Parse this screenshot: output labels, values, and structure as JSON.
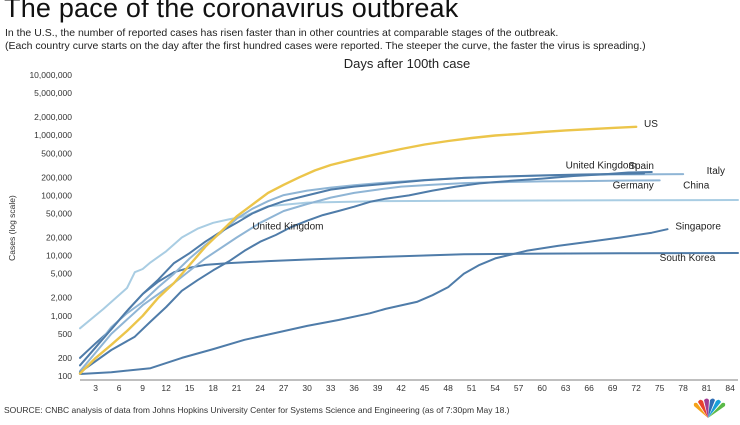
{
  "header": {
    "title": "The pace of the coronavirus outbreak",
    "subtitle_line1": "In the U.S., the number of reported cases has risen faster than in other countries at comparable stages of the outbreak.",
    "subtitle_line2": "(Each country curve starts on the day after the first hundred cases were reported. The steeper the curve, the faster the virus is spreading.)"
  },
  "footer": {
    "source": "SOURCE: CNBC analysis of data from Johns Hopkins University Center for Systems Science and Engineering (as of 7:30pm May 18.)"
  },
  "logo": {
    "icon": "nbc-peacock-icon"
  },
  "chart_data": {
    "type": "line",
    "title": "Days after 100th case",
    "xlabel": "",
    "ylabel": "Cases (log scale)",
    "yscale": "log",
    "ylim": [
      100,
      10000000
    ],
    "xlim": [
      1,
      85
    ],
    "grid": false,
    "x_ticks": [
      3,
      6,
      9,
      12,
      15,
      18,
      21,
      24,
      27,
      30,
      33,
      36,
      39,
      42,
      45,
      48,
      51,
      54,
      57,
      60,
      63,
      66,
      69,
      72,
      75,
      78,
      81,
      84
    ],
    "y_ticks": [
      {
        "value": 100,
        "label": "100"
      },
      {
        "value": 200,
        "label": "200"
      },
      {
        "value": 500,
        "label": "500"
      },
      {
        "value": 1000,
        "label": "1,000"
      },
      {
        "value": 2000,
        "label": "2,000"
      },
      {
        "value": 5000,
        "label": "5,000"
      },
      {
        "value": 10000,
        "label": "10,000"
      },
      {
        "value": 20000,
        "label": "20,000"
      },
      {
        "value": 50000,
        "label": "50,000"
      },
      {
        "value": 100000,
        "label": "100,000"
      },
      {
        "value": 200000,
        "label": "200,000"
      },
      {
        "value": 500000,
        "label": "500,000"
      },
      {
        "value": 1000000,
        "label": "1,000,000"
      },
      {
        "value": 2000000,
        "label": "2,000,000"
      },
      {
        "value": 5000000,
        "label": "5,000,000"
      },
      {
        "value": 10000000,
        "label": "10,000,000"
      }
    ],
    "series": [
      {
        "name": "China",
        "color": "#a9cde3",
        "label_anchor": "end",
        "points": [
          [
            1,
            620
          ],
          [
            4,
            1300
          ],
          [
            7,
            2900
          ],
          [
            8,
            5300
          ],
          [
            9,
            6000
          ],
          [
            10,
            7700
          ],
          [
            12,
            11800
          ],
          [
            14,
            20000
          ],
          [
            16,
            28000
          ],
          [
            18,
            35000
          ],
          [
            20,
            40000
          ],
          [
            22,
            45000
          ],
          [
            25,
            66000
          ],
          [
            30,
            76000
          ],
          [
            40,
            80500
          ],
          [
            50,
            81600
          ],
          [
            60,
            82400
          ],
          [
            70,
            82800
          ],
          [
            80,
            83500
          ],
          [
            85,
            84000
          ]
        ]
      },
      {
        "name": "South Korea",
        "color": "#4f7ca9",
        "label_anchor": "end",
        "points": [
          [
            1,
            200
          ],
          [
            3,
            350
          ],
          [
            5,
            600
          ],
          [
            7,
            1200
          ],
          [
            9,
            2300
          ],
          [
            11,
            3700
          ],
          [
            13,
            5300
          ],
          [
            15,
            6300
          ],
          [
            17,
            7000
          ],
          [
            20,
            7500
          ],
          [
            25,
            8100
          ],
          [
            30,
            8600
          ],
          [
            40,
            9600
          ],
          [
            50,
            10500
          ],
          [
            60,
            10800
          ],
          [
            70,
            10900
          ],
          [
            85,
            11050
          ]
        ]
      },
      {
        "name": "Singapore",
        "color": "#4f7ca9",
        "label_anchor": "end",
        "points": [
          [
            1,
            108
          ],
          [
            5,
            115
          ],
          [
            10,
            135
          ],
          [
            14,
            200
          ],
          [
            18,
            280
          ],
          [
            22,
            400
          ],
          [
            26,
            520
          ],
          [
            30,
            680
          ],
          [
            34,
            850
          ],
          [
            38,
            1100
          ],
          [
            40,
            1300
          ],
          [
            44,
            1700
          ],
          [
            46,
            2200
          ],
          [
            48,
            3000
          ],
          [
            50,
            5000
          ],
          [
            52,
            7000
          ],
          [
            54,
            9000
          ],
          [
            58,
            12000
          ],
          [
            62,
            14500
          ],
          [
            66,
            17000
          ],
          [
            70,
            20000
          ],
          [
            74,
            24000
          ],
          [
            76,
            27500
          ]
        ]
      },
      {
        "name": "Italy",
        "color": "#8fb5d5",
        "label_anchor": "end",
        "points": [
          [
            1,
            150
          ],
          [
            3,
            300
          ],
          [
            5,
            650
          ],
          [
            7,
            1100
          ],
          [
            9,
            1700
          ],
          [
            11,
            3000
          ],
          [
            13,
            5000
          ],
          [
            15,
            9000
          ],
          [
            17,
            15000
          ],
          [
            19,
            24000
          ],
          [
            21,
            41000
          ],
          [
            23,
            60000
          ],
          [
            25,
            80000
          ],
          [
            27,
            101000
          ],
          [
            30,
            120000
          ],
          [
            33,
            135000
          ],
          [
            36,
            148000
          ],
          [
            40,
            163000
          ],
          [
            45,
            180000
          ],
          [
            50,
            195000
          ],
          [
            55,
            205000
          ],
          [
            60,
            213000
          ],
          [
            65,
            219000
          ],
          [
            70,
            223000
          ],
          [
            75,
            225000
          ],
          [
            78,
            226000
          ]
        ]
      },
      {
        "name": "Germany",
        "color": "#8fb5d5",
        "label_anchor": "end",
        "points": [
          [
            1,
            120
          ],
          [
            5,
            500
          ],
          [
            9,
            1500
          ],
          [
            13,
            3500
          ],
          [
            17,
            9000
          ],
          [
            21,
            20000
          ],
          [
            24,
            35000
          ],
          [
            27,
            55000
          ],
          [
            30,
            72000
          ],
          [
            33,
            92000
          ],
          [
            36,
            110000
          ],
          [
            39,
            125000
          ],
          [
            42,
            140000
          ],
          [
            46,
            150000
          ],
          [
            50,
            160000
          ],
          [
            55,
            166000
          ],
          [
            60,
            171000
          ],
          [
            65,
            173000
          ],
          [
            70,
            176000
          ],
          [
            75,
            177500
          ]
        ]
      },
      {
        "name": "Spain",
        "color": "#4f7ca9",
        "label_anchor": "end",
        "points": [
          [
            1,
            150
          ],
          [
            3,
            300
          ],
          [
            5,
            600
          ],
          [
            7,
            1200
          ],
          [
            9,
            2300
          ],
          [
            11,
            4000
          ],
          [
            13,
            7500
          ],
          [
            15,
            11000
          ],
          [
            17,
            17000
          ],
          [
            19,
            25000
          ],
          [
            21,
            35000
          ],
          [
            23,
            50000
          ],
          [
            25,
            65000
          ],
          [
            27,
            80000
          ],
          [
            30,
            100000
          ],
          [
            33,
            125000
          ],
          [
            36,
            140000
          ],
          [
            40,
            156000
          ],
          [
            45,
            178000
          ],
          [
            50,
            195000
          ],
          [
            55,
            206000
          ],
          [
            60,
            215000
          ],
          [
            65,
            222000
          ],
          [
            70,
            228000
          ],
          [
            73,
            231000
          ]
        ]
      },
      {
        "name": "United Kingdom",
        "color": "#4f7ca9",
        "label_anchor": "end",
        "points": [
          [
            1,
            115
          ],
          [
            5,
            270
          ],
          [
            8,
            450
          ],
          [
            10,
            800
          ],
          [
            12,
            1400
          ],
          [
            14,
            2600
          ],
          [
            16,
            3900
          ],
          [
            18,
            5700
          ],
          [
            20,
            8000
          ],
          [
            22,
            12000
          ],
          [
            24,
            17000
          ],
          [
            26,
            22000
          ],
          [
            28,
            30000
          ],
          [
            30,
            38000
          ],
          [
            32,
            47000
          ],
          [
            34,
            55000
          ],
          [
            36,
            65000
          ],
          [
            38,
            78000
          ],
          [
            40,
            88000
          ],
          [
            43,
            100000
          ],
          [
            46,
            120000
          ],
          [
            49,
            140000
          ],
          [
            52,
            158000
          ],
          [
            56,
            175000
          ],
          [
            60,
            190000
          ],
          [
            64,
            210000
          ],
          [
            68,
            225000
          ],
          [
            71,
            240000
          ],
          [
            74,
            245000
          ]
        ]
      },
      {
        "name": "US",
        "color": "#ecc54a",
        "label_anchor": "end",
        "points": [
          [
            1,
            110
          ],
          [
            3,
            200
          ],
          [
            5,
            330
          ],
          [
            7,
            560
          ],
          [
            9,
            1000
          ],
          [
            11,
            2000
          ],
          [
            13,
            3500
          ],
          [
            15,
            7000
          ],
          [
            17,
            14000
          ],
          [
            19,
            25000
          ],
          [
            21,
            45000
          ],
          [
            23,
            70000
          ],
          [
            25,
            110000
          ],
          [
            27,
            150000
          ],
          [
            29,
            200000
          ],
          [
            31,
            260000
          ],
          [
            33,
            320000
          ],
          [
            36,
            400000
          ],
          [
            39,
            490000
          ],
          [
            42,
            590000
          ],
          [
            45,
            700000
          ],
          [
            48,
            800000
          ],
          [
            51,
            900000
          ],
          [
            54,
            990000
          ],
          [
            57,
            1050000
          ],
          [
            60,
            1130000
          ],
          [
            63,
            1200000
          ],
          [
            66,
            1260000
          ],
          [
            69,
            1320000
          ],
          [
            72,
            1380000
          ]
        ]
      }
    ],
    "annotations": [
      {
        "text": "US",
        "x": 73,
        "y": 1380000
      },
      {
        "text": "United Kingdom",
        "x": 63,
        "y": 280000
      },
      {
        "text": "Spain",
        "x": 71,
        "y": 275000
      },
      {
        "text": "Italy",
        "x": 81,
        "y": 226000
      },
      {
        "text": "Germany",
        "x": 69,
        "y": 130000
      },
      {
        "text": "China",
        "x": 78,
        "y": 130000
      },
      {
        "text": "United Kingdom",
        "x": 23,
        "y": 27000
      },
      {
        "text": "Singapore",
        "x": 77,
        "y": 27000
      },
      {
        "text": "South Korea",
        "x": 75,
        "y": 8200
      }
    ]
  }
}
